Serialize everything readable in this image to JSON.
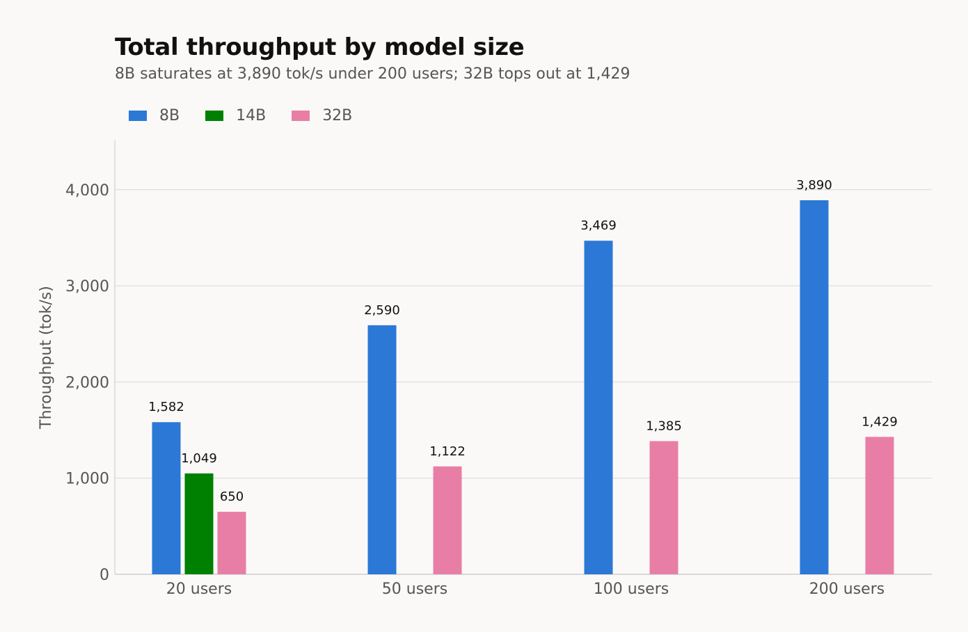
{
  "chart_data": {
    "type": "bar",
    "title": "Total throughput by model size",
    "subtitle": "8B saturates at 3,890 tok/s under 200 users; 32B tops out at 1,429",
    "ylabel": "Throughput (tok/s)",
    "xlabel": "",
    "categories": [
      "20 users",
      "50 users",
      "100 users",
      "200 users"
    ],
    "series": [
      {
        "name": "8B",
        "color": "#2b78d6",
        "values": [
          1582,
          2590,
          3469,
          3890
        ],
        "labels": [
          "1,582",
          "2,590",
          "3,469",
          "3,890"
        ]
      },
      {
        "name": "14B",
        "color": "#008000",
        "values": [
          1049,
          null,
          null,
          null
        ],
        "labels": [
          "1,049",
          null,
          null,
          null
        ]
      },
      {
        "name": "32B",
        "color": "#e87ea6",
        "values": [
          650,
          1122,
          1385,
          1429
        ],
        "labels": [
          "650",
          "1,122",
          "1,385",
          "1,429"
        ]
      }
    ],
    "ylim": [
      0,
      4500
    ],
    "yticks": [
      0,
      1000,
      2000,
      3000,
      4000
    ],
    "ytick_labels": [
      "0",
      "1,000",
      "2,000",
      "3,000",
      "4,000"
    ],
    "grid": true,
    "legend_position": "top-left"
  }
}
